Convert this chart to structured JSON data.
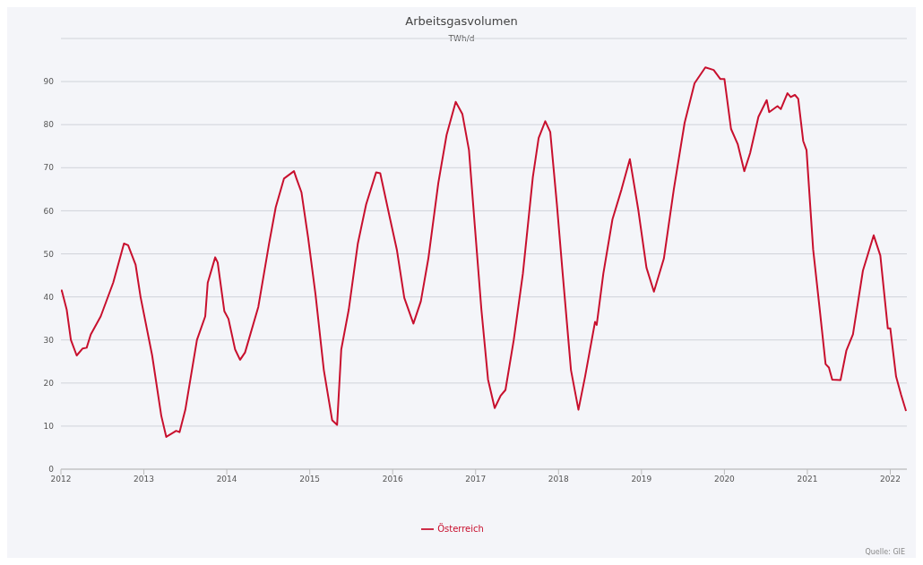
{
  "chart_data": {
    "type": "line",
    "title": "Arbeitsgasvolumen",
    "subtitle": "TWh/d",
    "x": [
      2012.0,
      2012.01,
      2012.07,
      2012.12,
      2012.19,
      2012.26,
      2012.31,
      2012.36,
      2012.48,
      2012.63,
      2012.76,
      2012.81,
      2012.9,
      2012.96,
      2013.1,
      2013.21,
      2013.27,
      2013.39,
      2013.43,
      2013.5,
      2013.64,
      2013.74,
      2013.77,
      2013.86,
      2013.89,
      2013.97,
      2014.02,
      2014.1,
      2014.16,
      2014.22,
      2014.38,
      2014.51,
      2014.59,
      2014.69,
      2014.81,
      2014.84,
      2014.9,
      2014.98,
      2015.07,
      2015.17,
      2015.27,
      2015.33,
      2015.38,
      2015.47,
      2015.58,
      2015.68,
      2015.8,
      2015.85,
      2015.97,
      2016.05,
      2016.14,
      2016.25,
      2016.34,
      2016.43,
      2016.55,
      2016.65,
      2016.76,
      2016.84,
      2016.92,
      2016.99,
      2017.07,
      2017.15,
      2017.23,
      2017.3,
      2017.36,
      2017.46,
      2017.57,
      2017.69,
      2017.76,
      2017.84,
      2017.9,
      2017.98,
      2018.05,
      2018.15,
      2018.24,
      2018.32,
      2018.44,
      2018.46,
      2018.54,
      2018.65,
      2018.76,
      2018.86,
      2018.96,
      2019.06,
      2019.15,
      2019.27,
      2019.39,
      2019.52,
      2019.64,
      2019.77,
      2019.87,
      2019.95,
      2020.0,
      2020.08,
      2020.16,
      2020.24,
      2020.31,
      2020.41,
      2020.51,
      2020.54,
      2020.64,
      2020.68,
      2020.76,
      2020.8,
      2020.85,
      2020.89,
      2020.95,
      2020.99,
      2021.07,
      2021.15,
      2021.22,
      2021.26,
      2021.3,
      2021.4,
      2021.47,
      2021.55,
      2021.67,
      2021.8,
      2021.88,
      2021.97,
      2022.0,
      2022.07,
      2022.13,
      2022.19
    ],
    "series": [
      {
        "name": "Österreich",
        "color": "#c8102e",
        "values": [
          41.2,
          41.5,
          37,
          30,
          26.4,
          28,
          28.2,
          31.3,
          35.5,
          43.3,
          52.4,
          52,
          47.5,
          40,
          26.4,
          12.4,
          7.5,
          8.9,
          8.6,
          13.8,
          30,
          35.5,
          43.3,
          49.2,
          48,
          36.7,
          34.9,
          27.8,
          25.4,
          27.1,
          37.7,
          52.4,
          60.8,
          67.5,
          69.2,
          67.5,
          64.3,
          53.8,
          40.5,
          23,
          11.4,
          10.3,
          27.8,
          37,
          52.4,
          61.5,
          68.9,
          68.7,
          58,
          51,
          39.8,
          33.8,
          39,
          48.9,
          66.4,
          77.6,
          85.3,
          82.5,
          74.1,
          56.6,
          37,
          20.8,
          14.2,
          17,
          18.4,
          30,
          45.4,
          67.8,
          76.9,
          80.8,
          78.3,
          61.5,
          45.4,
          23,
          13.8,
          21.5,
          34.2,
          33.5,
          45.4,
          58,
          65,
          72,
          60.4,
          46.8,
          41.2,
          48.9,
          65,
          80.4,
          89.6,
          93.3,
          92.7,
          90.6,
          90.6,
          79,
          75.5,
          69.2,
          73.4,
          81.8,
          85.7,
          82.9,
          84.3,
          83.6,
          87.3,
          86.4,
          86.9,
          86,
          76.2,
          74.1,
          51,
          37,
          24.4,
          23.6,
          20.8,
          20.7,
          27.5,
          31.3,
          46.1,
          54.3,
          49.6,
          32.7,
          32.7,
          21.5,
          17.3,
          13.5
        ]
      }
    ],
    "xlim": [
      2012,
      2022.2
    ],
    "xticks": [
      2012,
      2013,
      2014,
      2015,
      2016,
      2017,
      2018,
      2019,
      2020,
      2021,
      2022
    ],
    "ylim": [
      0,
      100
    ],
    "yticks": [
      0,
      10,
      20,
      30,
      40,
      50,
      60,
      70,
      80,
      90,
      {
        "value": 100,
        "label": null
      }
    ],
    "grid": "y",
    "legend": "bottom",
    "marker": "none",
    "line_style": "solid",
    "annotations": [
      "Quelle: GIE"
    ]
  }
}
